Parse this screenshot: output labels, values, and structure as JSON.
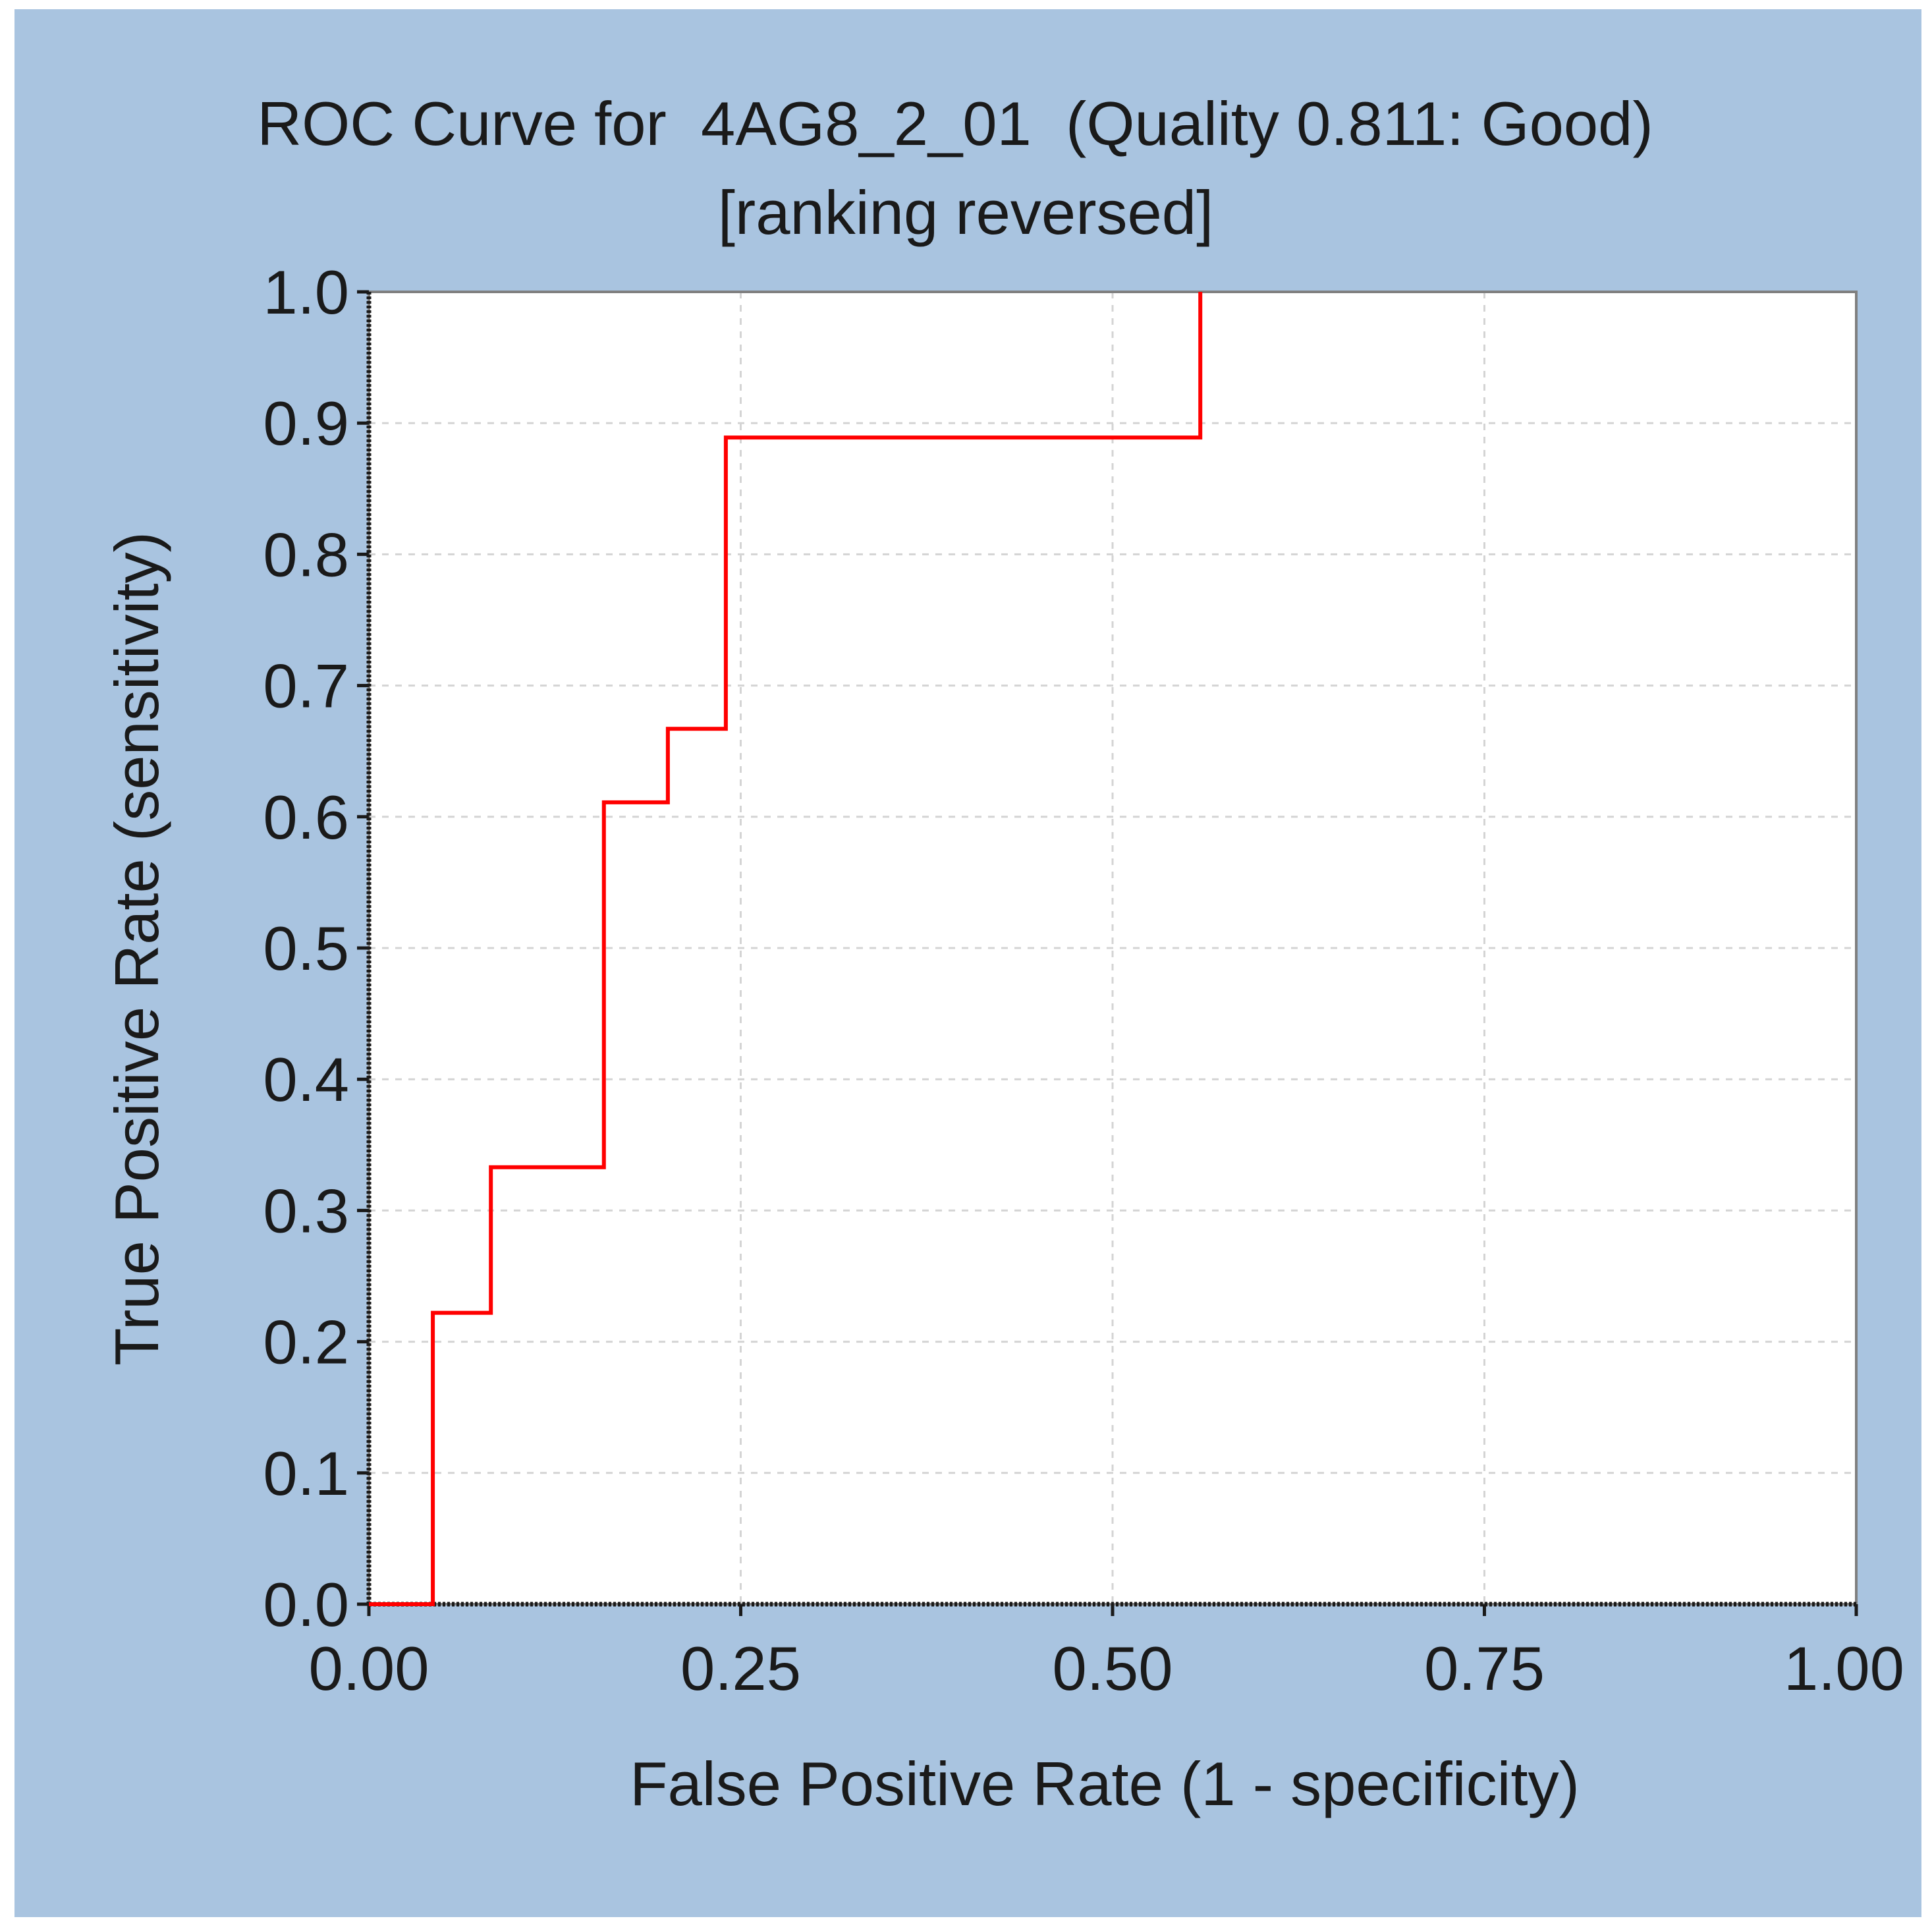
{
  "colors": {
    "panel_background": "#a9c4e0",
    "page_background": "#ffffff",
    "plot_background": "#ffffff",
    "grid": "#d4d4d4",
    "axis": "#1a1a1a",
    "plot_border": "#808080",
    "series": "#ff0000"
  },
  "chart_data": {
    "type": "line",
    "title": "ROC Curve for  4AG8_2_01  (Quality 0.811: Good)",
    "subtitle": "[ranking reversed]",
    "xlabel": "False Positive Rate (1 - specificity)",
    "ylabel": "True Positive Rate (sensitivity)",
    "xlim": [
      0,
      1
    ],
    "ylim": [
      0,
      1
    ],
    "x_ticks": [
      0,
      0.25,
      0.5,
      0.75,
      1
    ],
    "x_tick_labels": [
      "0.00",
      "0.25",
      "0.50",
      "0.75",
      "1.00"
    ],
    "y_ticks": [
      0,
      0.1,
      0.2,
      0.3,
      0.4,
      0.5,
      0.6,
      0.7,
      0.8,
      0.9,
      1
    ],
    "y_tick_labels": [
      "0.0",
      "0.1",
      "0.2",
      "0.3",
      "0.4",
      "0.5",
      "0.6",
      "0.7",
      "0.8",
      "0.9",
      "1.0"
    ],
    "grid": true,
    "series": [
      {
        "name": "ROC",
        "step": true,
        "x": [
          0,
          0.043,
          0.043,
          0.082,
          0.082,
          0.158,
          0.158,
          0.201,
          0.201,
          0.24,
          0.24,
          0.559,
          0.559
        ],
        "y": [
          0,
          0,
          0.222,
          0.222,
          0.333,
          0.333,
          0.611,
          0.611,
          0.667,
          0.667,
          0.889,
          0.889,
          1.0
        ]
      }
    ]
  }
}
